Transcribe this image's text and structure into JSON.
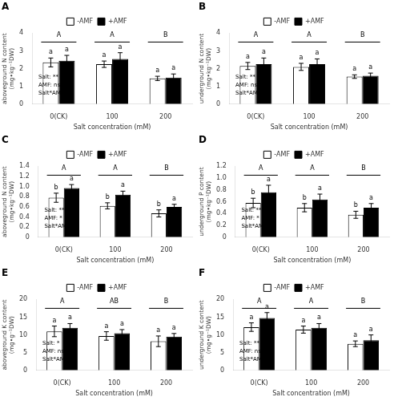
{
  "chart_data": [
    {
      "type": "bar",
      "title": "A",
      "xlabel": "Salt concentration (mM)",
      "ylabel": "aboveground N content\n(mg•kg⁻¹DW)",
      "categories": [
        "0(CK)",
        "100",
        "200"
      ],
      "series": [
        {
          "name": "-AMF",
          "color": "white",
          "values": [
            2.35,
            2.25,
            1.45
          ],
          "errors": [
            0.25,
            0.18,
            0.12
          ],
          "bar_labels": [
            "a",
            "a",
            "a"
          ]
        },
        {
          "name": "+AMF",
          "color": "black",
          "values": [
            2.45,
            2.55,
            1.5
          ],
          "errors": [
            0.3,
            0.35,
            0.2
          ],
          "bar_labels": [
            "a",
            "a",
            "a"
          ]
        }
      ],
      "group_labels": [
        "A",
        "A",
        "B"
      ],
      "annotations": [
        "Salt: **\nAMF: ns\nSalt*AMF:ns"
      ],
      "ylim": [
        0,
        4
      ],
      "yticks": [
        0,
        1,
        2,
        3,
        4
      ],
      "grid": false,
      "legend": "top"
    },
    {
      "type": "bar",
      "title": "B",
      "xlabel": "Salt concentration (mM)",
      "ylabel": "underground N content\n(mg•kg⁻¹DW)",
      "categories": [
        "0(CK)",
        "100",
        "200"
      ],
      "series": [
        {
          "name": "-AMF",
          "color": "white",
          "values": [
            2.15,
            2.1,
            1.55
          ],
          "errors": [
            0.2,
            0.2,
            0.1
          ],
          "bar_labels": [
            "a",
            "a",
            "a"
          ]
        },
        {
          "name": "+AMF",
          "color": "black",
          "values": [
            2.25,
            2.25,
            1.6
          ],
          "errors": [
            0.35,
            0.3,
            0.15
          ],
          "bar_labels": [
            "a",
            "a",
            "a"
          ]
        }
      ],
      "group_labels": [
        "A",
        "A",
        "B"
      ],
      "annotations": [
        "Salt: **\nAMF: ns\nSalt*AMF:ns"
      ],
      "ylim": [
        0,
        4
      ],
      "yticks": [
        0,
        1,
        2,
        3,
        4
      ],
      "grid": false,
      "legend": "top"
    },
    {
      "type": "bar",
      "title": "C",
      "xlabel": "Salt concentration (mM)",
      "ylabel": "aboveground N content\n(mg•kg⁻¹DW)",
      "categories": [
        "0(CK)",
        "100",
        "200"
      ],
      "series": [
        {
          "name": "-AMF",
          "color": "white",
          "values": [
            0.78,
            0.62,
            0.47
          ],
          "errors": [
            0.09,
            0.06,
            0.07
          ],
          "bar_labels": [
            "b",
            "b",
            "b"
          ]
        },
        {
          "name": "+AMF",
          "color": "black",
          "values": [
            0.97,
            0.84,
            0.6
          ],
          "errors": [
            0.07,
            0.07,
            0.05
          ],
          "bar_labels": [
            "a",
            "a",
            "a"
          ]
        }
      ],
      "group_labels": [
        "A",
        "A",
        "B"
      ],
      "annotations": [
        "Salt: **\nAMF: *\nSalt*AMF:ns"
      ],
      "ylim": [
        0,
        1.4
      ],
      "yticks": [
        0,
        0.2,
        0.4,
        0.6,
        0.8,
        {
          "value": 1,
          "label": "1.0"
        },
        1.2,
        1.4
      ],
      "grid": false,
      "legend": "top"
    },
    {
      "type": "bar",
      "title": "D",
      "xlabel": "Salt concentration (mM)",
      "ylabel": "underground P content\n(mg•kg⁻¹DW)",
      "categories": [
        "0(CK)",
        "100",
        "200"
      ],
      "series": [
        {
          "name": "-AMF",
          "color": "white",
          "values": [
            0.58,
            0.5,
            0.38
          ],
          "errors": [
            0.08,
            0.07,
            0.06
          ],
          "bar_labels": [
            "b",
            "b",
            "b"
          ]
        },
        {
          "name": "+AMF",
          "color": "black",
          "values": [
            0.76,
            0.64,
            0.5
          ],
          "errors": [
            0.12,
            0.09,
            0.07
          ],
          "bar_labels": [
            "a",
            "a",
            "a"
          ]
        }
      ],
      "group_labels": [
        "A",
        "A",
        "B"
      ],
      "annotations": [
        "Salt: **\nAMF: *\nSalt*AMF:ns"
      ],
      "ylim": [
        0,
        1.2
      ],
      "yticks": [
        0,
        0.2,
        0.4,
        0.6,
        0.8,
        {
          "value": 1,
          "label": "1.0"
        },
        1.2
      ],
      "grid": false,
      "legend": "top"
    },
    {
      "type": "bar",
      "title": "E",
      "xlabel": "Salt concentration (mM)",
      "ylabel": "aboveground K content\n(mg•g⁻¹DW)",
      "categories": [
        "0(CK)",
        "100",
        "200"
      ],
      "series": [
        {
          "name": "-AMF",
          "color": "white",
          "values": [
            11.0,
            9.7,
            8.2
          ],
          "errors": [
            1.5,
            1.2,
            1.5
          ],
          "bar_labels": [
            "a",
            "a",
            "a"
          ]
        },
        {
          "name": "+AMF",
          "color": "black",
          "values": [
            12.0,
            10.5,
            9.5
          ],
          "errors": [
            1.2,
            1.0,
            0.9
          ],
          "bar_labels": [
            "a",
            "a",
            "a"
          ]
        }
      ],
      "group_labels": [
        "A",
        "AB",
        "B"
      ],
      "annotations": [
        "Salt: *\nAMF: ns\nSalt*AMF:ns"
      ],
      "ylim": [
        0,
        20
      ],
      "yticks": [
        0,
        5,
        10,
        15,
        20
      ],
      "grid": false,
      "legend": "top"
    },
    {
      "type": "bar",
      "title": "F",
      "xlabel": "Salt concentration (mM)",
      "ylabel": "underground K content\n(mg•g⁻¹DW)",
      "categories": [
        "0(CK)",
        "100",
        "200"
      ],
      "series": [
        {
          "name": "-AMF",
          "color": "white",
          "values": [
            12.2,
            11.5,
            7.5
          ],
          "errors": [
            1.2,
            1.0,
            0.8
          ],
          "bar_labels": [
            "a",
            "a",
            "a"
          ]
        },
        {
          "name": "+AMF",
          "color": "black",
          "values": [
            14.8,
            12.0,
            8.5
          ],
          "errors": [
            1.5,
            1.2,
            1.5
          ],
          "bar_labels": [
            "a",
            "a",
            "a"
          ]
        }
      ],
      "group_labels": [
        "A",
        "A",
        "B"
      ],
      "annotations": [
        "Salt: **\nAMF: ns\nSalt*AMF:ns"
      ],
      "ylim": [
        0,
        20
      ],
      "yticks": [
        0,
        5,
        10,
        15,
        20
      ],
      "grid": false,
      "legend": "top"
    }
  ]
}
